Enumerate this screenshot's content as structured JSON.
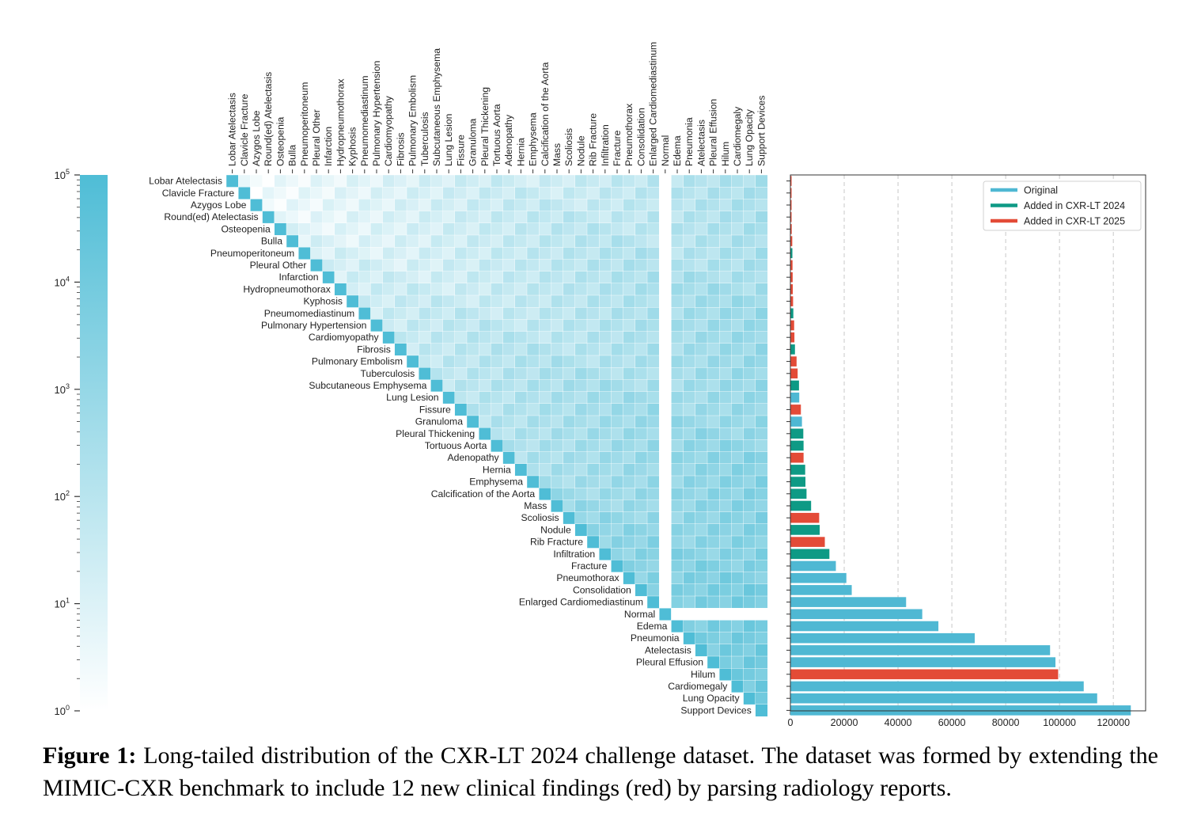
{
  "caption": {
    "label": "Figure 1:",
    "text": "Long-tailed distribution of the CXR-LT 2024 challenge dataset. The dataset was formed by extending the MIMIC-CXR benchmark to include 12 new clinical findings (red) by parsing radiology reports."
  },
  "colors": {
    "original": "#4fb8d3",
    "added_2024": "#0e9a85",
    "added_2025": "#e34b37",
    "heat_max": "#4fbdd6",
    "heat_min": "#ffffff"
  },
  "chart_data": [
    {
      "type": "heatmap",
      "description_scale": "log",
      "colorbar": {
        "scale": "log",
        "min": 1,
        "max": 100000,
        "ticks": [
          "10^0",
          "10^1",
          "10^2",
          "10^3",
          "10^4",
          "10^5"
        ],
        "tick_values": [
          1,
          10,
          100,
          1000,
          10000,
          100000
        ]
      },
      "labels": [
        "Lobar Atelectasis",
        "Clavicle Fracture",
        "Azygos Lobe",
        "Round(ed) Atelectasis",
        "Osteopenia",
        "Bulla",
        "Pneumoperitoneum",
        "Pleural Other",
        "Infarction",
        "Hydropneumothorax",
        "Kyphosis",
        "Pneumomediastinum",
        "Pulmonary Hypertension",
        "Cardiomyopathy",
        "Fibrosis",
        "Pulmonary Embolism",
        "Tuberculosis",
        "Subcutaneous Emphysema",
        "Lung Lesion",
        "Fissure",
        "Granuloma",
        "Pleural Thickening",
        "Tortuous Aorta",
        "Adenopathy",
        "Hernia",
        "Emphysema",
        "Calcification of the Aorta",
        "Mass",
        "Scoliosis",
        "Nodule",
        "Rib Fracture",
        "Infiltration",
        "Fracture",
        "Pneumothorax",
        "Consolidation",
        "Enlarged Cardiomediastinum",
        "Normal",
        "Edema",
        "Pneumonia",
        "Atelectasis",
        "Pleural Effusion",
        "Hilum",
        "Cardiomegaly",
        "Lung Opacity",
        "Support Devices"
      ],
      "matrix": "upper-triangular co-occurrence counts (log color scale)"
    },
    {
      "type": "bar",
      "orientation": "horizontal",
      "categories": [
        "Lobar Atelectasis",
        "Clavicle Fracture",
        "Azygos Lobe",
        "Round(ed) Atelectasis",
        "Osteopenia",
        "Bulla",
        "Pneumoperitoneum",
        "Pleural Other",
        "Infarction",
        "Hydropneumothorax",
        "Kyphosis",
        "Pneumomediastinum",
        "Pulmonary Hypertension",
        "Cardiomyopathy",
        "Fibrosis",
        "Pulmonary Embolism",
        "Tuberculosis",
        "Subcutaneous Emphysema",
        "Lung Lesion",
        "Fissure",
        "Granuloma",
        "Pleural Thickening",
        "Tortuous Aorta",
        "Adenopathy",
        "Hernia",
        "Emphysema",
        "Calcification of the Aorta",
        "Mass",
        "Scoliosis",
        "Nodule",
        "Rib Fracture",
        "Infiltration",
        "Fracture",
        "Pneumothorax",
        "Consolidation",
        "Enlarged Cardiomediastinum",
        "Normal",
        "Edema",
        "Pneumonia",
        "Atelectasis",
        "Pleural Effusion",
        "Hilum",
        "Cardiomegaly",
        "Lung Opacity",
        "Support Devices"
      ],
      "values": [
        90,
        120,
        150,
        180,
        500,
        700,
        750,
        800,
        850,
        900,
        1000,
        1100,
        1400,
        1500,
        1700,
        2300,
        2700,
        3200,
        3300,
        3900,
        4300,
        4800,
        4900,
        4900,
        5500,
        5600,
        6000,
        7700,
        10700,
        10900,
        12800,
        14500,
        16900,
        20800,
        22800,
        43000,
        49000,
        55000,
        68500,
        96500,
        98500,
        99500,
        109000,
        114000,
        126500
      ],
      "groups": [
        "2025",
        "2025",
        "2025",
        "2025",
        "2025",
        "2025",
        "2024",
        "2025",
        "2025",
        "2025",
        "2025",
        "2024",
        "2025",
        "2025",
        "2024",
        "2025",
        "2025",
        "2024",
        "original",
        "2025",
        "original",
        "2024",
        "2024",
        "2025",
        "2024",
        "2024",
        "2024",
        "2024",
        "2025",
        "2024",
        "2025",
        "2024",
        "original",
        "original",
        "original",
        "original",
        "original",
        "original",
        "original",
        "original",
        "original",
        "2025",
        "original",
        "original",
        "original"
      ],
      "legend": {
        "position": "top-right",
        "entries": [
          {
            "key": "original",
            "label": "Original"
          },
          {
            "key": "2024",
            "label": "Added in CXR-LT 2024"
          },
          {
            "key": "2025",
            "label": "Added in CXR-LT 2025"
          }
        ]
      },
      "xlim": [
        0,
        132000
      ],
      "xticks": [
        0,
        20000,
        40000,
        60000,
        80000,
        100000,
        120000
      ],
      "grid": "vertical dashed"
    }
  ]
}
